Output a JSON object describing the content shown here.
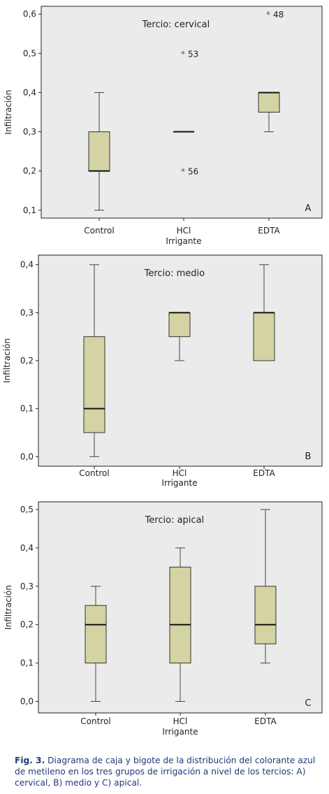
{
  "chart_data": [
    {
      "type": "box",
      "title": "Tercio: cervical",
      "panel_label": "A",
      "ylabel": "Infiltración",
      "xlabel": "Irrigante",
      "ylim": [
        0.08,
        0.62
      ],
      "yticks": [
        "0,1",
        "0,2",
        "0,3",
        "0,4",
        "0,5",
        "0,6"
      ],
      "ytick_values": [
        0.1,
        0.2,
        0.3,
        0.4,
        0.5,
        0.6
      ],
      "categories": [
        "Control",
        "HCl",
        "EDTA"
      ],
      "boxes": [
        {
          "min": 0.1,
          "q1": 0.2,
          "median": 0.2,
          "q3": 0.3,
          "max": 0.4
        },
        {
          "min": 0.3,
          "q1": 0.3,
          "median": 0.3,
          "q3": 0.3,
          "max": 0.3
        },
        {
          "min": 0.3,
          "q1": 0.35,
          "median": 0.4,
          "q3": 0.4,
          "max": 0.4
        }
      ],
      "outliers": [
        {
          "category": "HCl",
          "value": 0.5,
          "label": "53",
          "marker": "*"
        },
        {
          "category": "HCl",
          "value": 0.2,
          "label": "56",
          "marker": "*"
        },
        {
          "category": "EDTA",
          "value": 0.6,
          "label": "48",
          "marker": "*"
        }
      ]
    },
    {
      "type": "box",
      "title": "Tercio: medio",
      "panel_label": "B",
      "ylabel": "Infiltración",
      "xlabel": "Irrigante",
      "ylim": [
        -0.02,
        0.42
      ],
      "yticks": [
        "0,0",
        "0,1",
        "0,2",
        "0,3",
        "0,4"
      ],
      "ytick_values": [
        0.0,
        0.1,
        0.2,
        0.3,
        0.4
      ],
      "categories": [
        "Control",
        "HCl",
        "EDTA"
      ],
      "boxes": [
        {
          "min": 0.0,
          "q1": 0.05,
          "median": 0.1,
          "q3": 0.25,
          "max": 0.4
        },
        {
          "min": 0.2,
          "q1": 0.25,
          "median": 0.3,
          "q3": 0.3,
          "max": 0.3
        },
        {
          "min": 0.2,
          "q1": 0.2,
          "median": 0.3,
          "q3": 0.3,
          "max": 0.4
        }
      ],
      "outliers": []
    },
    {
      "type": "box",
      "title": "Tercio: apical",
      "panel_label": "C",
      "ylabel": "Infiltración",
      "xlabel": "Irrigante",
      "ylim": [
        -0.03,
        0.52
      ],
      "yticks": [
        "0,0",
        "0,1",
        "0,2",
        "0,3",
        "0,4",
        "0,5"
      ],
      "ytick_values": [
        0.0,
        0.1,
        0.2,
        0.3,
        0.4,
        0.5
      ],
      "categories": [
        "Control",
        "HCl",
        "EDTA"
      ],
      "boxes": [
        {
          "min": 0.0,
          "q1": 0.1,
          "median": 0.2,
          "q3": 0.25,
          "max": 0.3
        },
        {
          "min": 0.0,
          "q1": 0.1,
          "median": 0.2,
          "q3": 0.35,
          "max": 0.4
        },
        {
          "min": 0.1,
          "q1": 0.15,
          "median": 0.2,
          "q3": 0.3,
          "max": 0.5
        }
      ],
      "outliers": []
    }
  ],
  "caption": {
    "label": "Fig. 3.",
    "text": "Diagrama de caja y bigote de la distribución del colorante azul de metileno en los tres grupos de irrigación a nivel de los tercios: A) cervical, B) medio y C) apical."
  },
  "colors": {
    "plot_background": "#ebebeb",
    "box_fill": "#d3d3a3",
    "box_stroke": "#333333",
    "whisker": "#444444",
    "outlier": "#555555",
    "caption_text": "#1f3a78"
  }
}
